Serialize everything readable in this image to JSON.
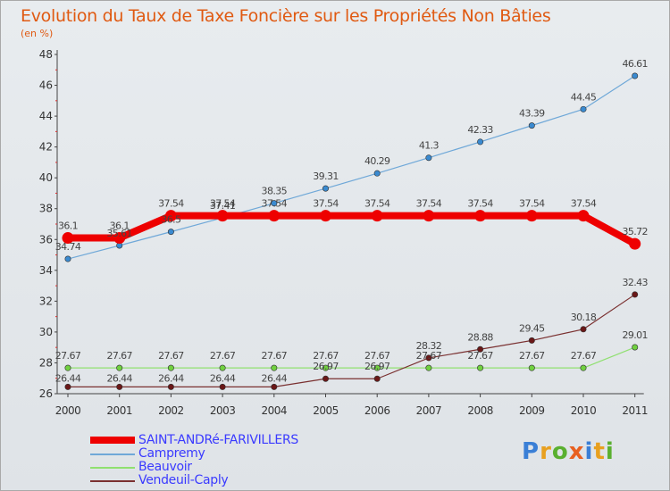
{
  "title": "Evolution du Taux de Taxe Foncière sur les Propriétés Non Bâties",
  "unit_label": "(en %)",
  "logo": {
    "text": "Proxiti",
    "colors": [
      "#3a7fd6",
      "#e8a020",
      "#5ab030",
      "#e86020",
      "#3a7fd6",
      "#e8a020",
      "#5ab030"
    ]
  },
  "chart_data": {
    "type": "line",
    "x": [
      "2000",
      "2001",
      "2002",
      "2003",
      "2004",
      "2005",
      "2006",
      "2007",
      "2008",
      "2009",
      "2010",
      "2011"
    ],
    "ylim": [
      26,
      48
    ],
    "yticks": [
      26,
      28,
      30,
      32,
      34,
      36,
      38,
      40,
      42,
      44,
      46,
      48
    ],
    "grid": false,
    "legend_position": "bottom-left",
    "series": [
      {
        "name": "SAINT-ANDRé-FARIVILLERS",
        "color": "#ee0000",
        "marker": "#ee0000",
        "values": [
          36.1,
          36.1,
          37.54,
          37.54,
          37.54,
          37.54,
          37.54,
          37.54,
          37.54,
          37.54,
          37.54,
          35.72
        ],
        "labels": [
          "36.1",
          "36.1",
          "37.54",
          "37.54",
          "37.54",
          "37.54",
          "37.54",
          "37.54",
          "37.54",
          "37.54",
          "37.54",
          "35.72"
        ]
      },
      {
        "name": "Campremy",
        "color": "#6fa8d8",
        "marker": "#3a8ad0",
        "values": [
          34.74,
          35.61,
          36.5,
          37.41,
          38.35,
          39.31,
          40.29,
          41.3,
          42.33,
          43.39,
          44.45,
          46.61
        ],
        "labels": [
          "34.74",
          "35.61",
          "36.5",
          "37.41",
          "38.35",
          "39.31",
          "40.29",
          "41.3",
          "42.33",
          "43.39",
          "44.45",
          "46.61"
        ]
      },
      {
        "name": "Beauvoir",
        "color": "#90e070",
        "marker": "#70d040",
        "values": [
          27.67,
          27.67,
          27.67,
          27.67,
          27.67,
          27.67,
          27.67,
          27.67,
          27.67,
          27.67,
          27.67,
          29.01
        ],
        "labels": [
          "27.67",
          "27.67",
          "27.67",
          "27.67",
          "27.67",
          "27.67",
          "27.67",
          "27.67",
          "27.67",
          "27.67",
          "27.67",
          "29.01"
        ]
      },
      {
        "name": "Vendeuil-Caply",
        "color": "#7a3030",
        "marker": "#6a1818",
        "values": [
          26.44,
          26.44,
          26.44,
          26.44,
          26.44,
          26.97,
          26.97,
          28.32,
          28.88,
          29.45,
          30.18,
          32.43
        ],
        "labels": [
          "26.44",
          "26.44",
          "26.44",
          "26.44",
          "26.44",
          "26.97",
          "26.97",
          "28.32",
          "28.88",
          "29.45",
          "30.18",
          "32.43"
        ]
      }
    ]
  }
}
